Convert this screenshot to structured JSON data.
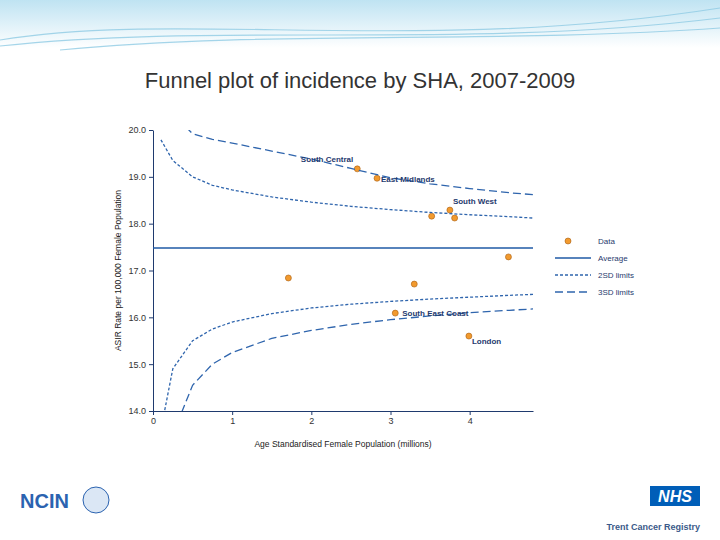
{
  "chart_data": {
    "type": "scatter",
    "title": "Funnel plot of incidence by SHA, 2007-2009",
    "x_label": "Age Standardised Female Population (millions)",
    "y_label": "ASIR Rate per 100,000 Female Population",
    "xlim": [
      0,
      4.8
    ],
    "xticks": [
      0,
      1,
      2,
      3,
      4
    ],
    "ylim": [
      14,
      20
    ],
    "yticks": [
      {
        "value": 14,
        "label": "14.0"
      },
      {
        "value": 15,
        "label": "15.0"
      },
      {
        "value": 16,
        "label": "16.0"
      },
      {
        "value": 17,
        "label": "17.0"
      },
      {
        "value": 18,
        "label": "18.0"
      },
      {
        "value": 19,
        "label": "19.0"
      },
      {
        "value": 20,
        "label": "20.0"
      }
    ],
    "legend": "right",
    "series": [
      {
        "name": "Data",
        "type": "scatter",
        "marker": "circle",
        "color": "#f29a2e",
        "x": [
          2.58,
          2.83,
          3.75,
          3.52,
          3.81,
          4.49,
          1.71,
          3.3,
          3.06,
          3.99
        ],
        "values": [
          19.17,
          18.97,
          18.29,
          18.16,
          18.12,
          17.29,
          16.84,
          16.71,
          16.09,
          15.6
        ],
        "labels": [
          "South Central",
          "East Midlands",
          "South West",
          null,
          null,
          null,
          null,
          null,
          "South East Coast",
          "London"
        ]
      },
      {
        "name": "Average",
        "type": "line",
        "line_style": "solid",
        "color": "#1f5aa6",
        "x": [
          0,
          4.8
        ],
        "values": [
          17.48,
          17.48
        ]
      },
      {
        "name": "2SD limits",
        "type": "funnel",
        "line_style": "dashed",
        "color": "#2f65ad",
        "x": [
          0.1,
          0.25,
          0.5,
          0.75,
          1,
          1.5,
          2,
          2.5,
          3,
          3.5,
          4,
          4.5,
          4.8
        ],
        "upper": [
          19.79,
          19.35,
          19.0,
          18.82,
          18.72,
          18.57,
          18.46,
          18.37,
          18.3,
          18.24,
          18.19,
          18.15,
          18.12
        ],
        "lower": [
          13.6,
          14.9,
          15.5,
          15.75,
          15.9,
          16.08,
          16.2,
          16.28,
          16.34,
          16.39,
          16.43,
          16.47,
          16.49
        ]
      },
      {
        "name": "3SD limits",
        "type": "funnel",
        "line_style": "long-dashed",
        "color": "#2f65ad",
        "x": [
          0.1,
          0.25,
          0.5,
          0.75,
          1,
          1.5,
          2,
          2.5,
          3,
          3.5,
          4,
          4.5,
          4.8
        ],
        "upper": [
          21.2,
          20.35,
          19.92,
          19.8,
          19.72,
          19.55,
          19.38,
          19.18,
          18.98,
          18.85,
          18.75,
          18.66,
          18.62
        ],
        "lower": [
          12.5,
          13.5,
          14.55,
          15.0,
          15.25,
          15.55,
          15.72,
          15.85,
          15.95,
          16.03,
          16.1,
          16.15,
          16.18
        ]
      }
    ]
  },
  "footer": {
    "left_logo": "NCIN",
    "right_logo": "NHS",
    "right_text": "Trent Cancer Registry"
  }
}
